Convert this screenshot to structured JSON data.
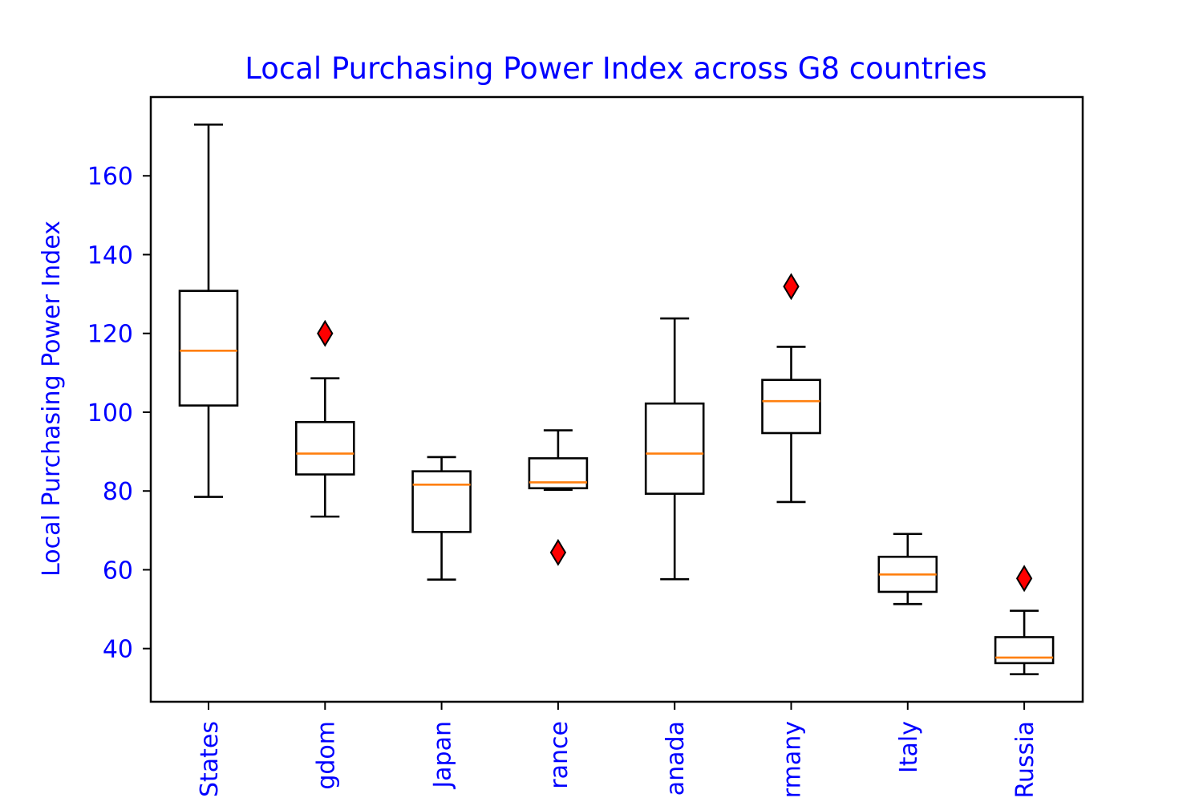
{
  "chart_data": {
    "type": "box",
    "title": "Local Purchasing Power Index across G8 countries",
    "xlabel": "",
    "ylabel": "Local Purchasing Power Index",
    "ylim": [
      26.5,
      180
    ],
    "yticks": [
      40,
      60,
      80,
      100,
      120,
      140,
      160
    ],
    "grid": false,
    "colors": {
      "text": "#0000ff",
      "box": "#000000",
      "median": "#ff7f0e",
      "flier_fill": "#ff0000"
    },
    "categories": [
      "United States",
      "United Kingdom",
      "Japan",
      "France",
      "Canada",
      "Germany",
      "Italy",
      "Russia"
    ],
    "tick_labels_visible": [
      "States",
      "gdom",
      "Japan",
      "rance",
      "anada",
      "rmany",
      "Italy",
      "Russia"
    ],
    "boxes": [
      {
        "category": "United States",
        "whisker_low": 78.5,
        "q1": 101.7,
        "median": 115.6,
        "q3": 130.8,
        "whisker_high": 173.0,
        "fliers": []
      },
      {
        "category": "United Kingdom",
        "whisker_low": 73.5,
        "q1": 84.2,
        "median": 89.5,
        "q3": 97.5,
        "whisker_high": 108.6,
        "fliers": [
          120.0
        ]
      },
      {
        "category": "Japan",
        "whisker_low": 57.5,
        "q1": 69.6,
        "median": 81.6,
        "q3": 85.0,
        "whisker_high": 88.6,
        "fliers": []
      },
      {
        "category": "France",
        "whisker_low": 80.3,
        "q1": 80.7,
        "median": 82.2,
        "q3": 88.3,
        "whisker_high": 95.4,
        "fliers": [
          64.4
        ]
      },
      {
        "category": "Canada",
        "whisker_low": 57.6,
        "q1": 79.3,
        "median": 89.5,
        "q3": 102.2,
        "whisker_high": 123.8,
        "fliers": []
      },
      {
        "category": "Germany",
        "whisker_low": 77.2,
        "q1": 94.7,
        "median": 102.8,
        "q3": 108.2,
        "whisker_high": 116.6,
        "fliers": [
          131.9
        ]
      },
      {
        "category": "Italy",
        "whisker_low": 51.3,
        "q1": 54.4,
        "median": 58.8,
        "q3": 63.3,
        "whisker_high": 69.1,
        "fliers": []
      },
      {
        "category": "Russia",
        "whisker_low": 33.5,
        "q1": 36.3,
        "median": 37.7,
        "q3": 42.9,
        "whisker_high": 49.6,
        "fliers": [
          57.8
        ]
      }
    ]
  }
}
